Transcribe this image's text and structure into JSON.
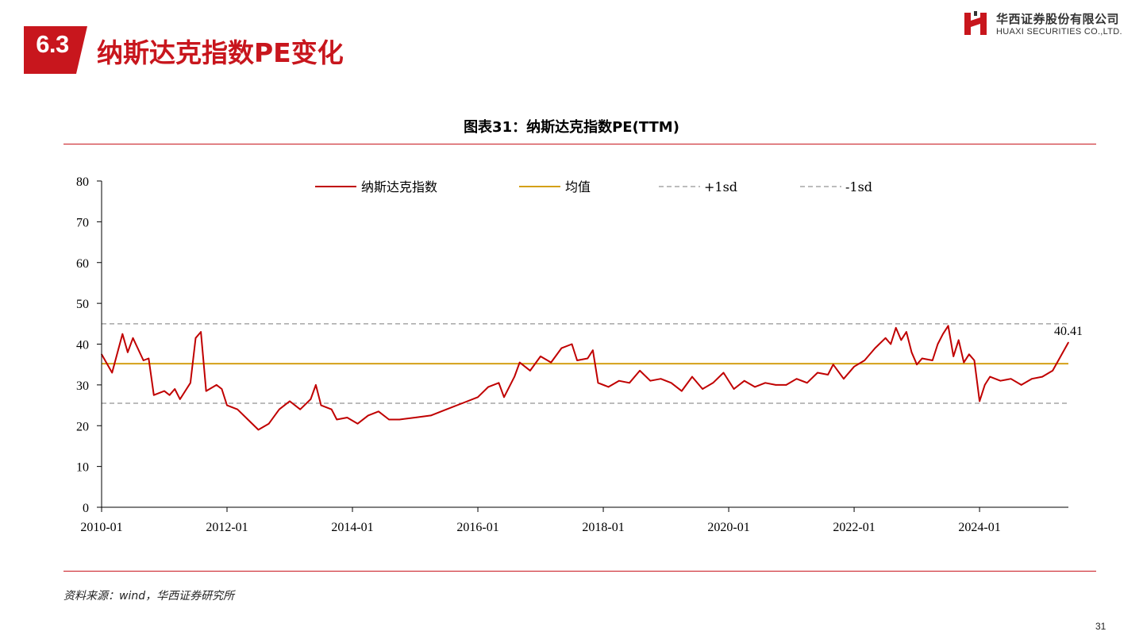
{
  "header": {
    "section_number": "6.3",
    "section_title": "纳斯达克指数PE变化",
    "logo_cn": "华西证券股份有限公司",
    "logo_en": "HUAXI SECURITIES CO.,LTD."
  },
  "figure_title": "图表31：纳斯达克指数PE(TTM)",
  "source": "资料来源：wind，华西证券研究所",
  "page_number": "31",
  "colors": {
    "brand": "#c8161d",
    "pe_line": "#c00000",
    "mean_line": "#d4a017",
    "sd_lines": "#a6a6a6"
  },
  "chart_data": {
    "type": "line",
    "x_ticks": [
      "2010-01",
      "2012-01",
      "2014-01",
      "2016-01",
      "2018-01",
      "2020-01",
      "2022-01",
      "2024-01"
    ],
    "y_ticks": [
      "0",
      "10",
      "20",
      "30",
      "40",
      "50",
      "60",
      "70",
      "80"
    ],
    "ylim": [
      0,
      80
    ],
    "x_range": [
      "2010-01",
      "2025-06"
    ],
    "legend": [
      "纳斯达克指数",
      "均值",
      "+1sd",
      "-1sd"
    ],
    "legend_position": "top",
    "mean": 35.2,
    "plus_1sd": 45.0,
    "minus_1sd": 25.5,
    "last_value_label": "40.41",
    "series": [
      {
        "name": "纳斯达克指数",
        "points": [
          [
            "2010-01",
            37.5
          ],
          [
            "2010-03",
            33.0
          ],
          [
            "2010-05",
            42.5
          ],
          [
            "2010-06",
            38.0
          ],
          [
            "2010-07",
            41.5
          ],
          [
            "2010-09",
            36.0
          ],
          [
            "2010-10",
            36.5
          ],
          [
            "2010-11",
            27.5
          ],
          [
            "2011-01",
            28.5
          ],
          [
            "2011-02",
            27.5
          ],
          [
            "2011-03",
            29.0
          ],
          [
            "2011-04",
            26.5
          ],
          [
            "2011-06",
            30.5
          ],
          [
            "2011-07",
            41.5
          ],
          [
            "2011-08",
            43.0
          ],
          [
            "2011-09",
            28.5
          ],
          [
            "2011-11",
            30.0
          ],
          [
            "2011-12",
            29.0
          ],
          [
            "2012-01",
            25.0
          ],
          [
            "2012-03",
            24.0
          ],
          [
            "2012-05",
            21.5
          ],
          [
            "2012-07",
            19.0
          ],
          [
            "2012-09",
            20.5
          ],
          [
            "2012-11",
            24.0
          ],
          [
            "2013-01",
            26.0
          ],
          [
            "2013-03",
            24.0
          ],
          [
            "2013-05",
            26.5
          ],
          [
            "2013-06",
            30.0
          ],
          [
            "2013-07",
            25.0
          ],
          [
            "2013-09",
            24.0
          ],
          [
            "2013-10",
            21.5
          ],
          [
            "2013-12",
            22.0
          ],
          [
            "2014-02",
            20.5
          ],
          [
            "2014-04",
            22.5
          ],
          [
            "2014-06",
            23.5
          ],
          [
            "2014-08",
            21.5
          ],
          [
            "2014-10",
            21.5
          ],
          [
            "2015-01",
            22.0
          ],
          [
            "2015-04",
            22.5
          ],
          [
            "2015-07",
            24.0
          ],
          [
            "2015-10",
            25.5
          ],
          [
            "2016-01",
            27.0
          ],
          [
            "2016-03",
            29.5
          ],
          [
            "2016-05",
            30.5
          ],
          [
            "2016-06",
            27.0
          ],
          [
            "2016-08",
            32.0
          ],
          [
            "2016-09",
            35.5
          ],
          [
            "2016-11",
            33.5
          ],
          [
            "2017-01",
            37.0
          ],
          [
            "2017-03",
            35.5
          ],
          [
            "2017-05",
            39.0
          ],
          [
            "2017-07",
            40.0
          ],
          [
            "2017-08",
            36.0
          ],
          [
            "2017-10",
            36.5
          ],
          [
            "2017-11",
            38.5
          ],
          [
            "2017-12",
            30.5
          ],
          [
            "2018-02",
            29.5
          ],
          [
            "2018-04",
            31.0
          ],
          [
            "2018-06",
            30.5
          ],
          [
            "2018-08",
            33.5
          ],
          [
            "2018-10",
            31.0
          ],
          [
            "2018-12",
            31.5
          ],
          [
            "2019-02",
            30.5
          ],
          [
            "2019-04",
            28.5
          ],
          [
            "2019-06",
            32.0
          ],
          [
            "2019-08",
            29.0
          ],
          [
            "2019-10",
            30.5
          ],
          [
            "2019-12",
            33.0
          ],
          [
            "2020-02",
            29.0
          ],
          [
            "2020-04",
            31.0
          ],
          [
            "2020-06",
            29.5
          ],
          [
            "2020-08",
            30.5
          ],
          [
            "2020-10",
            30.0
          ],
          [
            "2020-12",
            30.0
          ],
          [
            "2021-02",
            31.5
          ],
          [
            "2021-04",
            30.5
          ],
          [
            "2021-06",
            33.0
          ],
          [
            "2021-08",
            32.5
          ],
          [
            "2021-09",
            35.0
          ],
          [
            "2021-11",
            31.5
          ],
          [
            "2022-01",
            34.5
          ],
          [
            "2022-03",
            36.0
          ],
          [
            "2022-05",
            39.0
          ],
          [
            "2022-07",
            41.5
          ],
          [
            "2022-08",
            40.0
          ],
          [
            "2022-09",
            44.0
          ],
          [
            "2022-10",
            41.0
          ],
          [
            "2022-11",
            43.0
          ],
          [
            "2022-12",
            38.0
          ],
          [
            "2023-01",
            35.0
          ],
          [
            "2023-02",
            36.5
          ],
          [
            "2023-04",
            36.0
          ],
          [
            "2023-05",
            40.0
          ],
          [
            "2023-06",
            42.5
          ],
          [
            "2023-07",
            44.5
          ],
          [
            "2023-08",
            37.0
          ],
          [
            "2023-09",
            41.0
          ],
          [
            "2023-10",
            35.5
          ],
          [
            "2023-11",
            37.5
          ],
          [
            "2023-12",
            36.0
          ],
          [
            "2024-01",
            26.0
          ],
          [
            "2024-02",
            30.0
          ],
          [
            "2024-03",
            32.0
          ],
          [
            "2024-05",
            31.0
          ],
          [
            "2024-07",
            31.5
          ],
          [
            "2024-09",
            30.0
          ],
          [
            "2024-11",
            31.5
          ],
          [
            "2025-01",
            32.0
          ],
          [
            "2025-03",
            33.5
          ],
          [
            "2025-06",
            40.41
          ]
        ]
      }
    ]
  }
}
